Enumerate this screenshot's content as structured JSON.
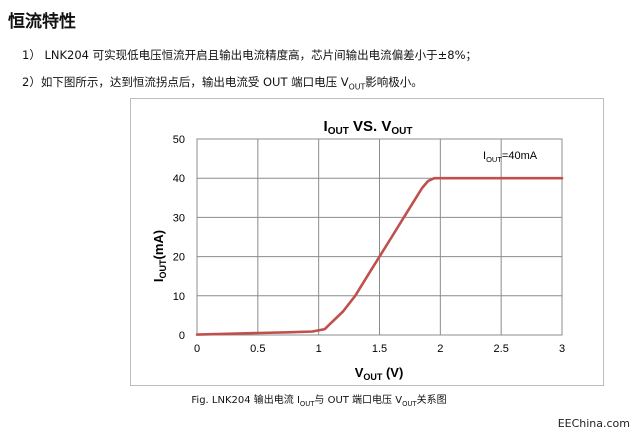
{
  "document": {
    "heading": "恒流特性",
    "paragraph1": "1） LNK204 可实现低电压恒流开启且输出电流精度高，芯片间输出电流偏差小于±8%；",
    "paragraph2": {
      "before": "2）如下图所示，达到恒流拐点后，输出电流受 OUT 端口电压 V",
      "sub": "OUT",
      "after": "影响极小。"
    },
    "caption": {
      "part1": "Fig. LNK204 输出电流 I",
      "sub1": "OUT",
      "part2": "与 OUT 端口电压 V",
      "sub2": "OUT",
      "part3": "关系图"
    },
    "watermark": "EEChina.com"
  },
  "chart_data": {
    "type": "line",
    "title": {
      "main1": "I",
      "sub1": "OUT",
      "mid": " VS. V",
      "sub2": "OUT"
    },
    "xlabel": {
      "main": "V",
      "sub": "OUT",
      "unit": " (V)"
    },
    "ylabel": {
      "main": "I",
      "sub": "OUT",
      "unit": "(mA)"
    },
    "annotation": {
      "main": "I",
      "sub": "OUT",
      "value": "=40mA"
    },
    "xlim": [
      0,
      3
    ],
    "ylim": [
      0,
      50
    ],
    "xticks": [
      "0",
      "0.5",
      "1",
      "1.5",
      "2",
      "2.5",
      "3"
    ],
    "yticks": [
      "0",
      "10",
      "20",
      "30",
      "40",
      "50"
    ],
    "grid": true,
    "color": "#c0504d",
    "series": [
      {
        "x": [
          0,
          0.25,
          0.5,
          0.75,
          0.95,
          1.05,
          1.1,
          1.2,
          1.3,
          1.4,
          1.5,
          1.6,
          1.7,
          1.8,
          1.85,
          1.9,
          1.95,
          2.0,
          2.2,
          2.5,
          3.0
        ],
        "y": [
          0.1,
          0.3,
          0.5,
          0.7,
          0.9,
          1.5,
          3,
          6,
          10,
          15,
          20,
          25,
          30,
          35,
          37.5,
          39.3,
          40,
          40,
          40,
          40,
          40
        ]
      }
    ]
  }
}
